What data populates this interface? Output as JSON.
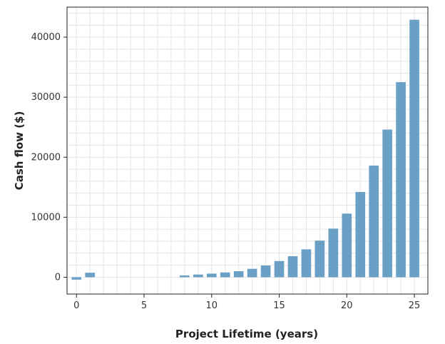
{
  "chart_data": {
    "type": "bar",
    "title": "",
    "xlabel": "Project Lifetime (years)",
    "ylabel": "Cash flow ($)",
    "x": [
      0,
      1,
      2,
      3,
      4,
      5,
      6,
      7,
      8,
      9,
      10,
      11,
      12,
      13,
      14,
      15,
      16,
      17,
      18,
      19,
      20,
      21,
      22,
      23,
      24,
      25
    ],
    "values": [
      -400,
      750,
      0,
      0,
      0,
      0,
      0,
      0,
      300,
      450,
      600,
      800,
      1000,
      1400,
      1950,
      2700,
      3500,
      4650,
      6100,
      8100,
      10600,
      14200,
      18600,
      24600,
      32500,
      42900
    ],
    "xlim": [
      -0.7,
      26
    ],
    "ylim": [
      -2800,
      45000
    ],
    "xticks": [
      0,
      5,
      10,
      15,
      20,
      25
    ],
    "yticks": [
      0,
      10000,
      20000,
      30000,
      40000
    ],
    "xtick_labels": [
      "0",
      "5",
      "10",
      "15",
      "20",
      "25"
    ],
    "ytick_labels": [
      "0",
      "10000",
      "20000",
      "30000",
      "40000"
    ],
    "grid": true,
    "colors": {
      "bar": "#6a9fc6",
      "grid": "#e4e4e4",
      "axis": "#222222"
    }
  }
}
